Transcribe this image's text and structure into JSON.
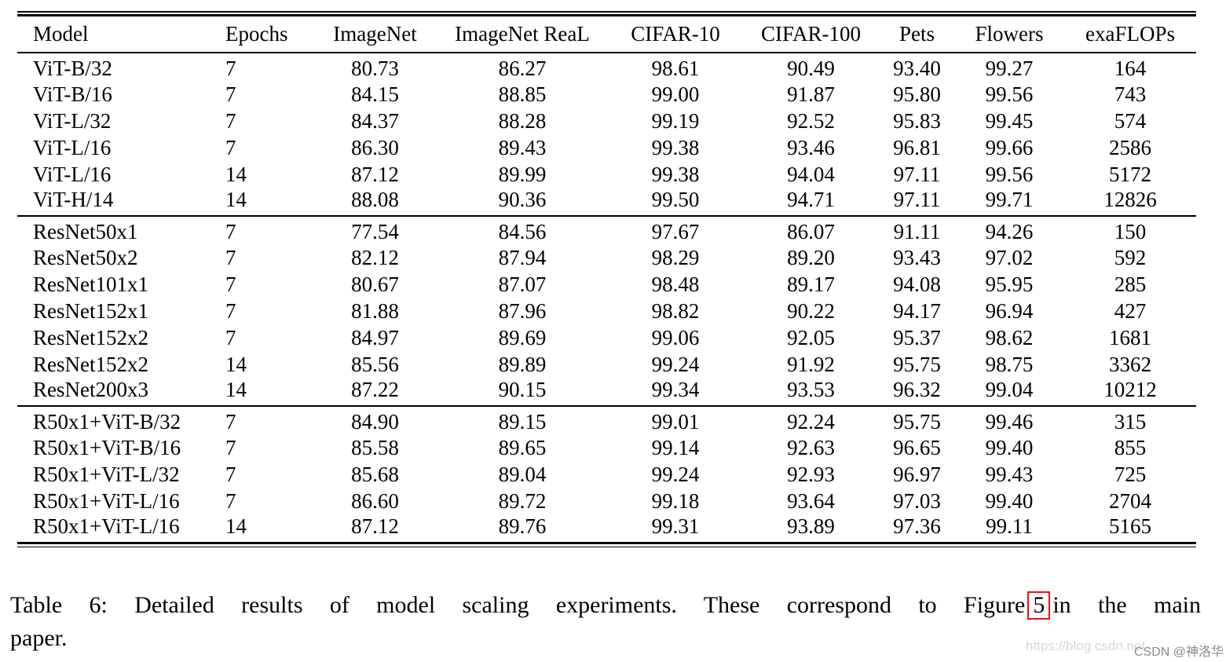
{
  "table": {
    "headers": [
      "Model",
      "Epochs",
      "ImageNet",
      "ImageNet ReaL",
      "CIFAR-10",
      "CIFAR-100",
      "Pets",
      "Flowers",
      "exaFLOPs"
    ],
    "groups": [
      {
        "name": "vit",
        "rows": [
          [
            "ViT-B/32",
            "7",
            "80.73",
            "86.27",
            "98.61",
            "90.49",
            "93.40",
            "99.27",
            "164"
          ],
          [
            "ViT-B/16",
            "7",
            "84.15",
            "88.85",
            "99.00",
            "91.87",
            "95.80",
            "99.56",
            "743"
          ],
          [
            "ViT-L/32",
            "7",
            "84.37",
            "88.28",
            "99.19",
            "92.52",
            "95.83",
            "99.45",
            "574"
          ],
          [
            "ViT-L/16",
            "7",
            "86.30",
            "89.43",
            "99.38",
            "93.46",
            "96.81",
            "99.66",
            "2586"
          ],
          [
            "ViT-L/16",
            "14",
            "87.12",
            "89.99",
            "99.38",
            "94.04",
            "97.11",
            "99.56",
            "5172"
          ],
          [
            "ViT-H/14",
            "14",
            "88.08",
            "90.36",
            "99.50",
            "94.71",
            "97.11",
            "99.71",
            "12826"
          ]
        ]
      },
      {
        "name": "resnet",
        "rows": [
          [
            "ResNet50x1",
            "7",
            "77.54",
            "84.56",
            "97.67",
            "86.07",
            "91.11",
            "94.26",
            "150"
          ],
          [
            "ResNet50x2",
            "7",
            "82.12",
            "87.94",
            "98.29",
            "89.20",
            "93.43",
            "97.02",
            "592"
          ],
          [
            "ResNet101x1",
            "7",
            "80.67",
            "87.07",
            "98.48",
            "89.17",
            "94.08",
            "95.95",
            "285"
          ],
          [
            "ResNet152x1",
            "7",
            "81.88",
            "87.96",
            "98.82",
            "90.22",
            "94.17",
            "96.94",
            "427"
          ],
          [
            "ResNet152x2",
            "7",
            "84.97",
            "89.69",
            "99.06",
            "92.05",
            "95.37",
            "98.62",
            "1681"
          ],
          [
            "ResNet152x2",
            "14",
            "85.56",
            "89.89",
            "99.24",
            "91.92",
            "95.75",
            "98.75",
            "3362"
          ],
          [
            "ResNet200x3",
            "14",
            "87.22",
            "90.15",
            "99.34",
            "93.53",
            "96.32",
            "99.04",
            "10212"
          ]
        ]
      },
      {
        "name": "hybrid",
        "rows": [
          [
            "R50x1+ViT-B/32",
            "7",
            "84.90",
            "89.15",
            "99.01",
            "92.24",
            "95.75",
            "99.46",
            "315"
          ],
          [
            "R50x1+ViT-B/16",
            "7",
            "85.58",
            "89.65",
            "99.14",
            "92.63",
            "96.65",
            "99.40",
            "855"
          ],
          [
            "R50x1+ViT-L/32",
            "7",
            "85.68",
            "89.04",
            "99.24",
            "92.93",
            "96.97",
            "99.43",
            "725"
          ],
          [
            "R50x1+ViT-L/16",
            "7",
            "86.60",
            "89.72",
            "99.18",
            "93.64",
            "97.03",
            "99.40",
            "2704"
          ],
          [
            "R50x1+ViT-L/16",
            "14",
            "87.12",
            "89.76",
            "99.31",
            "93.89",
            "97.36",
            "99.11",
            "5165"
          ]
        ]
      }
    ]
  },
  "caption": {
    "part1": "Table 6: Detailed results of model scaling experiments.  These correspond to Figure",
    "figure_ref": "5",
    "part2": "in the main",
    "line2": "paper."
  },
  "watermark": {
    "url": "https://blog.csdn.net",
    "credit": "CSDN @神洛华"
  },
  "colors": {
    "rule": "#000000",
    "figure_box": "#f10e0e",
    "watermark_url": "#d8d8d8",
    "watermark_credit": "#8a8a8a"
  }
}
